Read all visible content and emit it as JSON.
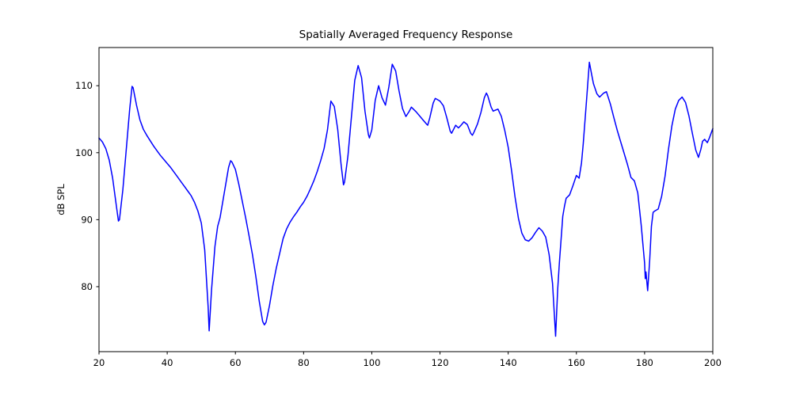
{
  "figure": {
    "background": "#ffffff"
  },
  "chart_data": {
    "type": "line",
    "title": "Spatially Averaged Frequency Response",
    "xlabel": "",
    "ylabel": "dB SPL",
    "xlim": [
      20,
      200
    ],
    "ylim": [
      70.3,
      115.7
    ],
    "x_ticks": [
      20,
      40,
      60,
      80,
      100,
      120,
      140,
      160,
      180,
      200
    ],
    "y_ticks": [
      80,
      90,
      100,
      110
    ],
    "grid": false,
    "legend": null,
    "line_color": "#0000ff",
    "line_width": 1.5,
    "frame_color": "#000000",
    "series": [
      {
        "name": "spatially-averaged-response",
        "points": [
          [
            20,
            102.2
          ],
          [
            21,
            101.6
          ],
          [
            22,
            100.6
          ],
          [
            23,
            98.9
          ],
          [
            24,
            96.2
          ],
          [
            25,
            92.4
          ],
          [
            25.7,
            89.8
          ],
          [
            26,
            90.0
          ],
          [
            27,
            94.5
          ],
          [
            28,
            100.5
          ],
          [
            29,
            106.5
          ],
          [
            29.7,
            109.9
          ],
          [
            30,
            109.7
          ],
          [
            31,
            107.1
          ],
          [
            32,
            104.9
          ],
          [
            33,
            103.5
          ],
          [
            34,
            102.6
          ],
          [
            35,
            101.8
          ],
          [
            36,
            101.0
          ],
          [
            37,
            100.3
          ],
          [
            38,
            99.6
          ],
          [
            39,
            99.0
          ],
          [
            40,
            98.4
          ],
          [
            41,
            97.8
          ],
          [
            42,
            97.1
          ],
          [
            43,
            96.4
          ],
          [
            44,
            95.7
          ],
          [
            45,
            95.0
          ],
          [
            46,
            94.3
          ],
          [
            47,
            93.6
          ],
          [
            48,
            92.6
          ],
          [
            49,
            91.3
          ],
          [
            50,
            89.5
          ],
          [
            51,
            85.5
          ],
          [
            52,
            77.0
          ],
          [
            52.3,
            73.4
          ],
          [
            53,
            79.5
          ],
          [
            54,
            86.0
          ],
          [
            54.8,
            89.0
          ],
          [
            55.5,
            90.3
          ],
          [
            56,
            91.8
          ],
          [
            57,
            94.8
          ],
          [
            58,
            97.8
          ],
          [
            58.6,
            98.8
          ],
          [
            59,
            98.6
          ],
          [
            60,
            97.5
          ],
          [
            61,
            95.3
          ],
          [
            62,
            92.8
          ],
          [
            63,
            90.3
          ],
          [
            64,
            87.6
          ],
          [
            65,
            84.8
          ],
          [
            66,
            81.5
          ],
          [
            67,
            77.8
          ],
          [
            68,
            74.8
          ],
          [
            68.5,
            74.3
          ],
          [
            69,
            74.7
          ],
          [
            70,
            77.2
          ],
          [
            71,
            80.2
          ],
          [
            72,
            82.8
          ],
          [
            73,
            85.0
          ],
          [
            74,
            87.2
          ],
          [
            75,
            88.6
          ],
          [
            76,
            89.6
          ],
          [
            77,
            90.4
          ],
          [
            78,
            91.1
          ],
          [
            79,
            91.9
          ],
          [
            80,
            92.6
          ],
          [
            81,
            93.5
          ],
          [
            82,
            94.6
          ],
          [
            83,
            95.8
          ],
          [
            84,
            97.2
          ],
          [
            85,
            98.8
          ],
          [
            86,
            100.6
          ],
          [
            87,
            103.4
          ],
          [
            88,
            107.7
          ],
          [
            89,
            106.9
          ],
          [
            90,
            103.5
          ],
          [
            91,
            98.2
          ],
          [
            91.7,
            95.2
          ],
          [
            92,
            95.6
          ],
          [
            93,
            99.5
          ],
          [
            94,
            105.2
          ],
          [
            95,
            110.8
          ],
          [
            96,
            113.0
          ],
          [
            97,
            111.2
          ],
          [
            98,
            106.2
          ],
          [
            99,
            102.7
          ],
          [
            99.3,
            102.2
          ],
          [
            100,
            103.4
          ],
          [
            101,
            107.8
          ],
          [
            102,
            110.0
          ],
          [
            103,
            108.2
          ],
          [
            104,
            107.1
          ],
          [
            105,
            109.8
          ],
          [
            106,
            113.2
          ],
          [
            107,
            112.2
          ],
          [
            108,
            109.2
          ],
          [
            109,
            106.6
          ],
          [
            110,
            105.4
          ],
          [
            111,
            106.2
          ],
          [
            111.6,
            106.8
          ],
          [
            112,
            106.6
          ],
          [
            113,
            106.1
          ],
          [
            114,
            105.5
          ],
          [
            115,
            104.9
          ],
          [
            116,
            104.3
          ],
          [
            116.4,
            104.1
          ],
          [
            117,
            105.2
          ],
          [
            118,
            107.4
          ],
          [
            118.6,
            108.1
          ],
          [
            119,
            108.0
          ],
          [
            120,
            107.7
          ],
          [
            121,
            107.0
          ],
          [
            122,
            105.2
          ],
          [
            123,
            103.2
          ],
          [
            123.4,
            102.9
          ],
          [
            124,
            103.5
          ],
          [
            124.6,
            104.1
          ],
          [
            125.4,
            103.7
          ],
          [
            126,
            104.0
          ],
          [
            127,
            104.6
          ],
          [
            128,
            104.2
          ],
          [
            129,
            102.9
          ],
          [
            129.5,
            102.6
          ],
          [
            130,
            103.1
          ],
          [
            131,
            104.3
          ],
          [
            132,
            106.0
          ],
          [
            133,
            108.2
          ],
          [
            133.6,
            108.9
          ],
          [
            134,
            108.5
          ],
          [
            135,
            106.8
          ],
          [
            135.6,
            106.2
          ],
          [
            136,
            106.3
          ],
          [
            137,
            106.5
          ],
          [
            138,
            105.4
          ],
          [
            139,
            103.3
          ],
          [
            140,
            100.8
          ],
          [
            141,
            97.3
          ],
          [
            142,
            93.4
          ],
          [
            143,
            90.2
          ],
          [
            144,
            88.0
          ],
          [
            145,
            87.0
          ],
          [
            146,
            86.8
          ],
          [
            147,
            87.3
          ],
          [
            148,
            88.1
          ],
          [
            149,
            88.8
          ],
          [
            150,
            88.3
          ],
          [
            151,
            87.4
          ],
          [
            152,
            84.8
          ],
          [
            153,
            80.5
          ],
          [
            153.9,
            72.6
          ],
          [
            154.5,
            79.5
          ],
          [
            155,
            83.5
          ],
          [
            156,
            90.5
          ],
          [
            156.5,
            92.0
          ],
          [
            157,
            93.2
          ],
          [
            158,
            93.7
          ],
          [
            159,
            95.1
          ],
          [
            160,
            96.6
          ],
          [
            160.8,
            96.2
          ],
          [
            161.5,
            98.5
          ],
          [
            162,
            101.3
          ],
          [
            163,
            108.0
          ],
          [
            163.8,
            113.5
          ],
          [
            164.5,
            111.6
          ],
          [
            165,
            110.3
          ],
          [
            166,
            108.8
          ],
          [
            166.8,
            108.3
          ],
          [
            168,
            108.9
          ],
          [
            168.8,
            109.1
          ],
          [
            170,
            107.2
          ],
          [
            171,
            105.2
          ],
          [
            172,
            103.3
          ],
          [
            173,
            101.6
          ],
          [
            174,
            99.9
          ],
          [
            175,
            98.2
          ],
          [
            176,
            96.3
          ],
          [
            177,
            95.8
          ],
          [
            178,
            94.0
          ],
          [
            179,
            89.2
          ],
          [
            180,
            83.5
          ],
          [
            180.2,
            81.2
          ],
          [
            180.4,
            82.2
          ],
          [
            180.9,
            79.4
          ],
          [
            181.5,
            84.0
          ],
          [
            182,
            89.0
          ],
          [
            182.5,
            91.1
          ],
          [
            183,
            91.3
          ],
          [
            184,
            91.6
          ],
          [
            185,
            93.5
          ],
          [
            186,
            96.5
          ],
          [
            187,
            100.5
          ],
          [
            188,
            104.0
          ],
          [
            189,
            106.5
          ],
          [
            190,
            107.8
          ],
          [
            191,
            108.3
          ],
          [
            192,
            107.5
          ],
          [
            193,
            105.5
          ],
          [
            194,
            102.9
          ],
          [
            195,
            100.4
          ],
          [
            195.8,
            99.3
          ],
          [
            196.5,
            100.5
          ],
          [
            197,
            101.7
          ],
          [
            197.6,
            102.0
          ],
          [
            198.4,
            101.5
          ],
          [
            199,
            102.2
          ],
          [
            200,
            103.6
          ]
        ]
      }
    ]
  }
}
